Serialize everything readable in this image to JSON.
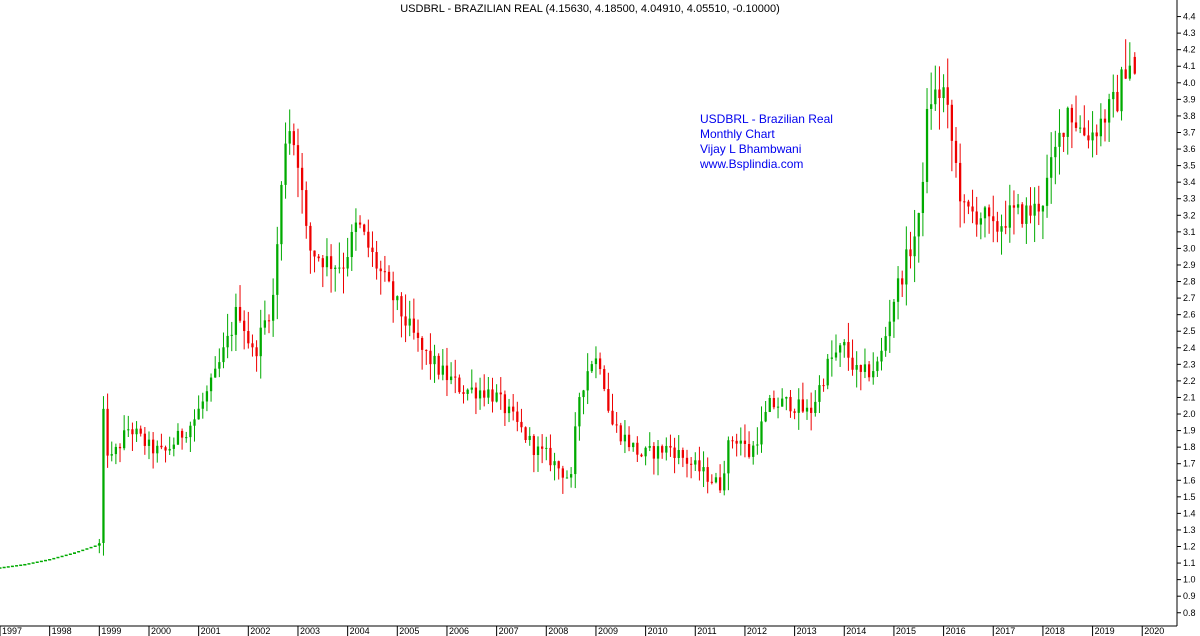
{
  "chart_data": {
    "type": "candlestick",
    "title": "USDBRL - BRAZILIAN REAL (4.15630, 4.18500, 4.04910, 4.05510, -0.10000)",
    "annotation_lines": [
      "USDBRL - Brazilian Real",
      "Monthly Chart",
      "Vijay L Bhambwani",
      "www.Bsplindia.com"
    ],
    "y_ticks": [
      "0.8",
      "0.9",
      "1.0",
      "1.1",
      "1.2",
      "1.3",
      "1.4",
      "1.5",
      "1.6",
      "1.7",
      "1.8",
      "1.9",
      "2.0",
      "2.1",
      "2.2",
      "2.3",
      "2.4",
      "2.5",
      "2.6",
      "2.7",
      "2.8",
      "2.9",
      "3.0",
      "3.1",
      "3.2",
      "3.3",
      "3.4",
      "3.5",
      "3.6",
      "3.7",
      "3.8",
      "3.9",
      "4.0",
      "4.1",
      "4.2",
      "4.3",
      "4.4"
    ],
    "x_ticks": [
      "1997",
      "1998",
      "1999",
      "2000",
      "2001",
      "2002",
      "2003",
      "2004",
      "2005",
      "2006",
      "2007",
      "2008",
      "2009",
      "2010",
      "2011",
      "2012",
      "2013",
      "2014",
      "2015",
      "2016",
      "2017",
      "2018",
      "2019",
      "2020"
    ],
    "ylim": [
      0.72,
      4.5
    ],
    "up_color": "#00aa00",
    "down_color": "#ee0000",
    "pre_1999_path": [
      [
        1997.0,
        1.07
      ],
      [
        1997.5,
        1.09
      ],
      [
        1998.0,
        1.12
      ],
      [
        1998.5,
        1.16
      ],
      [
        1999.0,
        1.21
      ]
    ],
    "anchors": [
      [
        1999.0,
        1.21
      ],
      [
        1999.05,
        2.06
      ],
      [
        1999.2,
        1.7
      ],
      [
        1999.6,
        1.92
      ],
      [
        2000.0,
        1.8
      ],
      [
        2000.3,
        1.76
      ],
      [
        2000.9,
        1.96
      ],
      [
        2001.3,
        2.2
      ],
      [
        2001.6,
        2.45
      ],
      [
        2001.8,
        2.65
      ],
      [
        2002.1,
        2.35
      ],
      [
        2002.5,
        2.7
      ],
      [
        2002.78,
        3.8
      ],
      [
        2003.0,
        3.55
      ],
      [
        2003.2,
        3.0
      ],
      [
        2003.6,
        2.92
      ],
      [
        2003.9,
        2.9
      ],
      [
        2004.2,
        3.15
      ],
      [
        2004.5,
        2.95
      ],
      [
        2005.0,
        2.65
      ],
      [
        2005.5,
        2.38
      ],
      [
        2005.9,
        2.25
      ],
      [
        2006.3,
        2.15
      ],
      [
        2006.8,
        2.14
      ],
      [
        2007.0,
        2.1
      ],
      [
        2007.5,
        1.9
      ],
      [
        2007.8,
        1.78
      ],
      [
        2008.0,
        1.75
      ],
      [
        2008.5,
        1.6
      ],
      [
        2008.65,
        2.1
      ],
      [
        2008.9,
        2.33
      ],
      [
        2009.1,
        2.32
      ],
      [
        2009.3,
        1.95
      ],
      [
        2009.9,
        1.75
      ],
      [
        2010.5,
        1.8
      ],
      [
        2010.9,
        1.7
      ],
      [
        2011.5,
        1.57
      ],
      [
        2011.7,
        1.85
      ],
      [
        2011.9,
        1.85
      ],
      [
        2012.1,
        1.75
      ],
      [
        2012.5,
        2.05
      ],
      [
        2012.9,
        2.07
      ],
      [
        2013.3,
        2.0
      ],
      [
        2013.7,
        2.32
      ],
      [
        2014.0,
        2.4
      ],
      [
        2014.3,
        2.22
      ],
      [
        2014.7,
        2.3
      ],
      [
        2015.0,
        2.7
      ],
      [
        2015.5,
        3.15
      ],
      [
        2015.7,
        3.9
      ],
      [
        2016.0,
        3.95
      ],
      [
        2016.4,
        3.22
      ],
      [
        2016.8,
        3.2
      ],
      [
        2017.0,
        3.1
      ],
      [
        2017.3,
        3.2
      ],
      [
        2017.8,
        3.22
      ],
      [
        2018.0,
        3.3
      ],
      [
        2018.5,
        3.85
      ],
      [
        2018.8,
        3.7
      ],
      [
        2019.0,
        3.7
      ],
      [
        2019.5,
        3.9
      ],
      [
        2019.7,
        4.15
      ],
      [
        2019.9,
        4.1
      ]
    ],
    "last_candle": {
      "open": 4.1563,
      "high": 4.185,
      "low": 4.0491,
      "close": 4.0551
    }
  }
}
